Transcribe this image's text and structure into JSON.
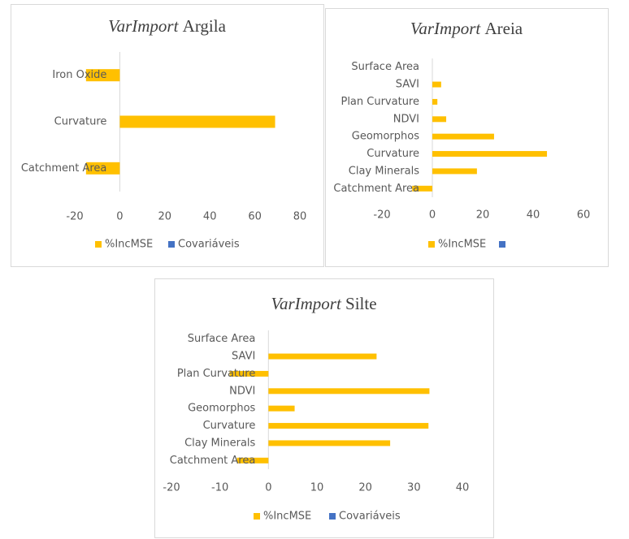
{
  "chart_data": [
    {
      "type": "bar",
      "title_emphasis": "VarImport",
      "title": "Argila",
      "categories": [
        "Iron Oxide",
        "Curvature",
        "Catchment Area"
      ],
      "series": [
        {
          "name": "%IncMSE",
          "color": "#ffc000",
          "values": [
            -15,
            69,
            -15
          ]
        },
        {
          "name": "Covariáveis",
          "color": "#4472c4"
        }
      ],
      "xlim": [
        -20,
        80
      ],
      "xticks": [
        -20,
        0,
        20,
        40,
        60,
        80
      ]
    },
    {
      "type": "bar",
      "title_emphasis": "VarImport",
      "title": "Areia",
      "categories": [
        "Surface Area",
        "SAVI",
        "Plan Curvature",
        "NDVI",
        "Geomorphos",
        "Curvature",
        "Clay Minerals",
        "Catchment Area"
      ],
      "series": [
        {
          "name": "%IncMSE",
          "color": "#ffc000",
          "values": [
            0,
            3.5,
            2,
            5.5,
            24.5,
            45.5,
            17.7,
            -8
          ]
        },
        {
          "color": "#4472c4"
        }
      ],
      "xlim": [
        -20,
        60
      ],
      "xticks": [
        -20,
        0,
        20,
        40,
        60
      ]
    },
    {
      "type": "bar",
      "title_emphasis": "VarImport",
      "title": "Silte",
      "categories": [
        "Surface Area",
        "SAVI",
        "Plan Curvature",
        "NDVI",
        "Geomorphos",
        "Curvature",
        "Clay Minerals",
        "Catchment Area"
      ],
      "series": [
        {
          "name": "%IncMSE",
          "color": "#ffc000",
          "values": [
            0,
            22.3,
            -8,
            33.2,
            5.4,
            33,
            25.1,
            -6.5
          ]
        },
        {
          "name": "Covariáveis",
          "color": "#4472c4"
        }
      ],
      "xlim": [
        -20,
        40
      ],
      "xticks": [
        -20,
        -10,
        0,
        10,
        20,
        30,
        40
      ]
    }
  ]
}
